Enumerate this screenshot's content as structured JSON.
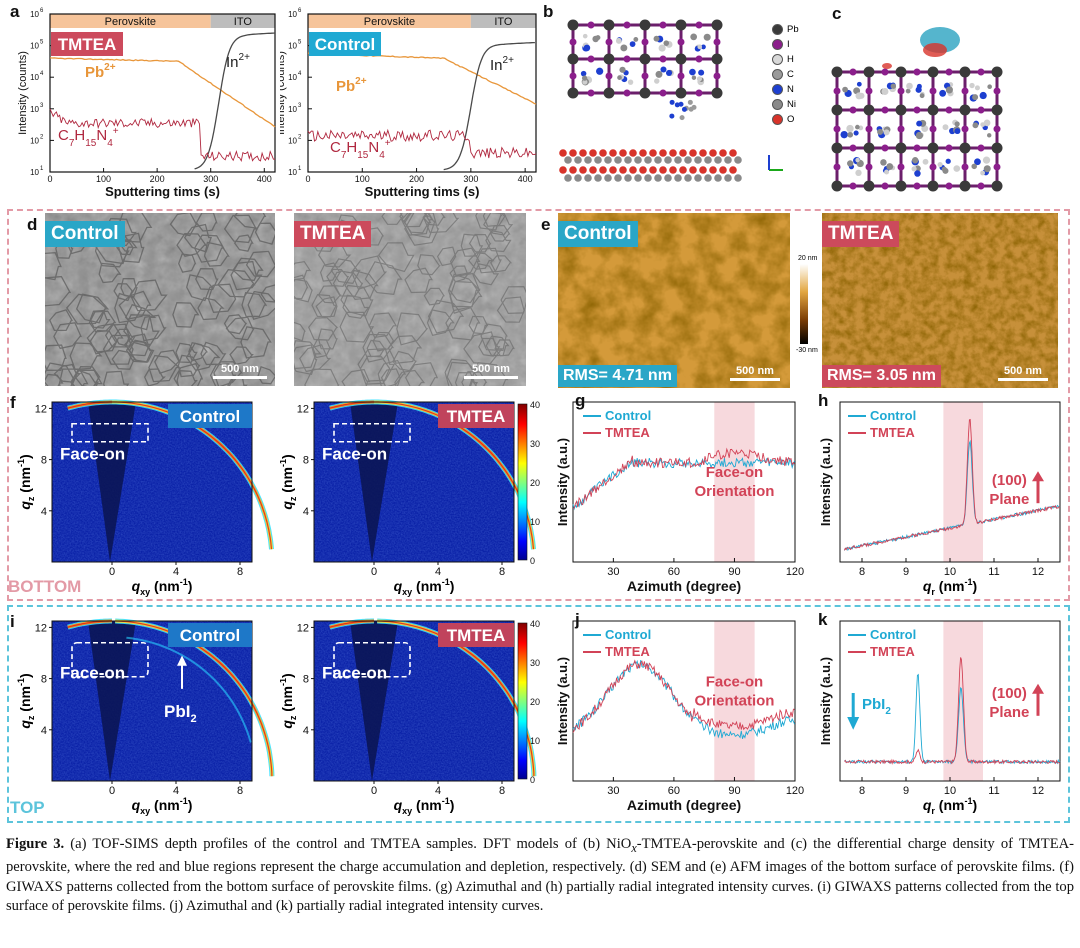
{
  "panels": {
    "a": "a",
    "b": "b",
    "c": "c",
    "d": "d",
    "e": "e",
    "f": "f",
    "g": "g",
    "h": "h",
    "i": "i",
    "j": "j",
    "k": "k"
  },
  "tof": [
    {
      "tag": "TMTEA",
      "region1": "Perovskite",
      "region2": "ITO",
      "pb": "Pb",
      "pb_sup": "2+",
      "in": "In",
      "in_sup": "2+",
      "organic": "C",
      "org1": "7",
      "org2": "H",
      "org3": "15",
      "org4": "N",
      "org5": "4",
      "org_sup": "+",
      "xlabel": "Sputtering tims (s)",
      "ylabel": "Intensity (counts)",
      "xticks": [
        "0",
        "100",
        "200",
        "300",
        "400"
      ],
      "yticks": [
        "10",
        "10",
        "10",
        "10",
        "10",
        "10"
      ],
      "yexp": [
        "1",
        "2",
        "3",
        "4",
        "5",
        "6"
      ]
    },
    {
      "tag": "Control",
      "region1": "Perovskite",
      "region2": "ITO",
      "pb": "Pb",
      "pb_sup": "2+",
      "in": "In",
      "in_sup": "2+",
      "organic": "C",
      "org1": "7",
      "org2": "H",
      "org3": "15",
      "org4": "N",
      "org5": "4",
      "org_sup": "+",
      "xlabel": "Sputtering tims (s)",
      "ylabel": "Intensity (counts)",
      "xticks": [
        "0",
        "100",
        "200",
        "300",
        "400"
      ],
      "yticks": [
        "10",
        "10",
        "10",
        "10",
        "10",
        "10"
      ],
      "yexp": [
        "1",
        "2",
        "3",
        "4",
        "5",
        "6"
      ]
    }
  ],
  "legend_atoms": [
    "Pb",
    "I",
    "H",
    "C",
    "N",
    "Ni",
    "O"
  ],
  "atom_colors": [
    "#3a3a3a",
    "#8b1e8b",
    "#d8d8d8",
    "#9a9a9a",
    "#1d3fd0",
    "#8a8a8a",
    "#d8332a"
  ],
  "sem": [
    {
      "tag": "Control",
      "scale": "500 nm"
    },
    {
      "tag": "TMTEA",
      "scale": "500 nm"
    }
  ],
  "afm": [
    {
      "tag": "Control",
      "rms": "RMS= 4.71 nm",
      "scale": "500 nm"
    },
    {
      "tag": "TMTEA",
      "rms": "RMS= 3.05 nm",
      "scale": "500 nm"
    }
  ],
  "afm_scale": {
    "top": "20 nm",
    "bottom": "-30 nm"
  },
  "bottom_label": "BOTTOM",
  "top_label": "TOP",
  "giwaxs": {
    "f": [
      {
        "tag": "Control",
        "faceon": "Face-on"
      },
      {
        "tag": "TMTEA",
        "faceon": "Face-on"
      }
    ],
    "i": [
      {
        "tag": "Control",
        "faceon": "Face-on",
        "pbi2": "PbI",
        "pbi2_sub": "2"
      },
      {
        "tag": "TMTEA",
        "faceon": "Face-on"
      }
    ],
    "xlabel": "q",
    "xlabel_sub": "xy",
    "xunit": " (nm",
    "xunit_sup": "-1",
    "xunit_end": ")",
    "ylabel": "q",
    "ylabel_sub": "z",
    "yunit": " (nm",
    "yunit_sup": "-1",
    "yunit_end": ")",
    "xticks": [
      "0",
      "4",
      "8"
    ],
    "yticks": [
      "4",
      "8",
      "12"
    ],
    "cbar_ticks": [
      "40",
      "30",
      "20",
      "10",
      "0"
    ]
  },
  "azimuthal": {
    "g": {
      "legend": [
        "Control",
        "TMTEA"
      ],
      "annot1": "Face-on",
      "annot2": "Orientation"
    },
    "j": {
      "legend": [
        "Control",
        "TMTEA"
      ],
      "annot1": "Face-on",
      "annot2": "Orientation"
    },
    "xlabel": "Azimuth (degree)",
    "ylabel": "Intensity (a.u.)",
    "xticks": [
      "30",
      "60",
      "90",
      "120"
    ]
  },
  "radial": {
    "h": {
      "legend": [
        "Control",
        "TMTEA"
      ],
      "annot1": "(100)",
      "annot2": "Plane"
    },
    "k": {
      "legend": [
        "Control",
        "TMTEA"
      ],
      "annot1": "(100)",
      "annot2": "Plane",
      "pbi2": "PbI",
      "pbi2_sub": "2"
    },
    "xlabel": "q",
    "xlabel_sub": "r",
    "xunit": " (nm",
    "xunit_sup": "-1",
    "xunit_end": ")",
    "ylabel": "Intensity (a.u.)",
    "xticks": [
      "8",
      "9",
      "10",
      "11",
      "12"
    ]
  },
  "colors": {
    "control": "#1fa9d3",
    "tmtea": "#d24357",
    "pb": "#e8963a",
    "in": "#4a4a4a",
    "org": "#b0283f",
    "bottom": "#e39aa6",
    "top": "#5cc4db"
  },
  "caption": {
    "fig": "Figure 3.",
    "t1": " (a) TOF-SIMS depth profiles of the control and TMTEA samples. DFT models of (b) NiO",
    "x": "x",
    "t2": "-TMTEA-perovskite and (c) the differential charge density of TMTEA-perovskite, where the red and blue regions represent the charge accumulation and depletion, respectively. (d) SEM and (e) AFM images of the bottom surface of perovskite films. (f) GIWAXS patterns collected from the bottom surface of perovskite films. (g) Azimuthal and (h) partially radial integrated intensity curves. (i) GIWAXS patterns collected from the top surface of perovskite films. (j) Azimuthal and (k) partially radial integrated intensity curves."
  }
}
